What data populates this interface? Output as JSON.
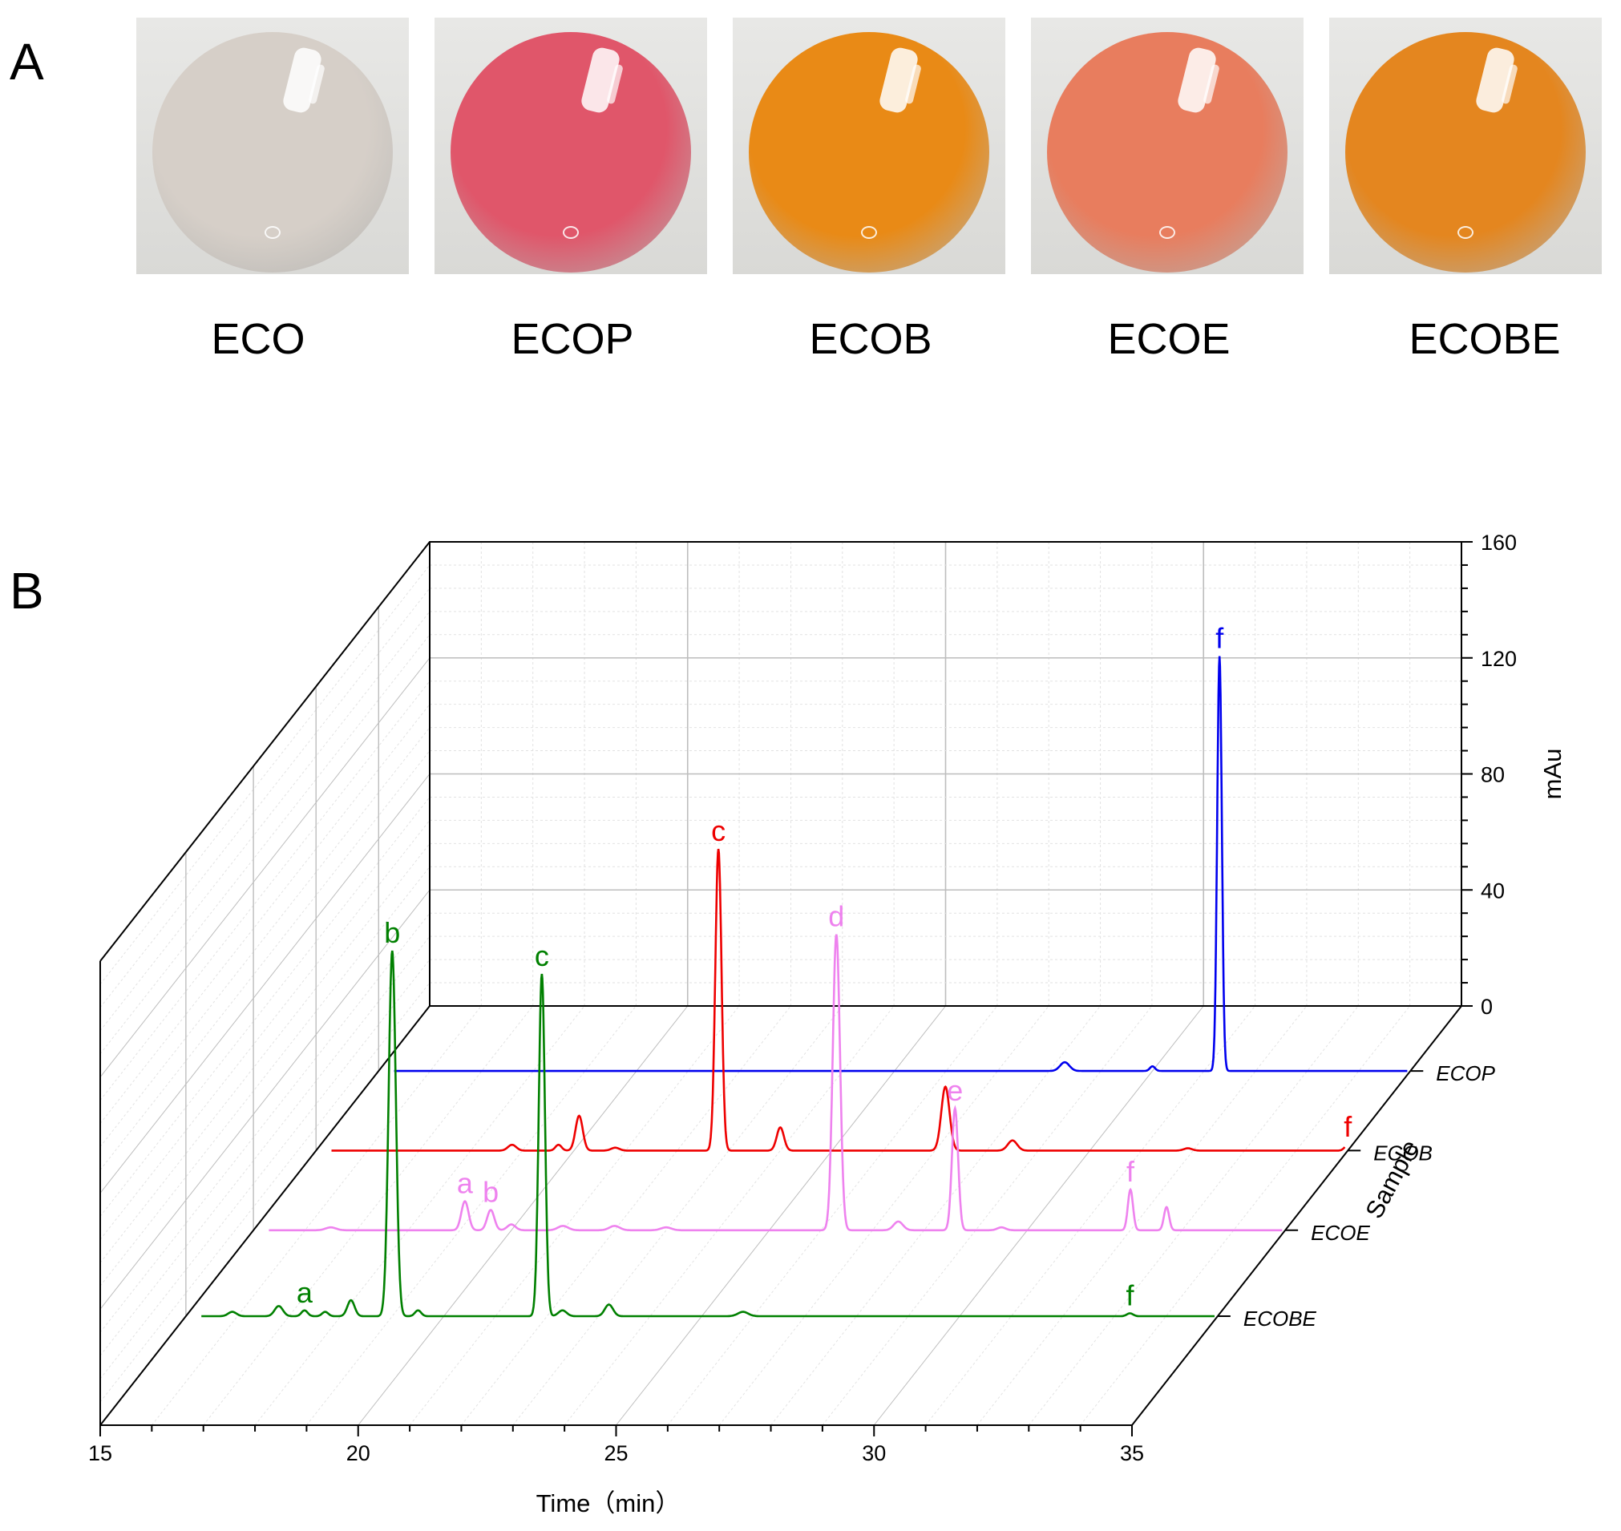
{
  "panel_a": {
    "letter": "A",
    "samples": [
      {
        "label": "ECO",
        "color": "#d6cfc8"
      },
      {
        "label": "ECOP",
        "color": "#e0566a"
      },
      {
        "label": "ECOB",
        "color": "#e98a16"
      },
      {
        "label": "ECOE",
        "color": "#e87d5e"
      },
      {
        "label": "ECOBE",
        "color": "#e4861f"
      }
    ]
  },
  "panel_b": {
    "letter": "B"
  },
  "chart_data": {
    "type": "line",
    "title": "",
    "xlabel": "Time（min）",
    "ylabel": "mAu",
    "zlabel": "Sample",
    "xlim": [
      15,
      35
    ],
    "ylim": [
      0,
      160
    ],
    "x_ticks": [
      15,
      20,
      25,
      30,
      35
    ],
    "y_ticks": [
      0,
      40,
      80,
      120,
      160
    ],
    "grid": true,
    "series": [
      {
        "name": "ECOP",
        "color": "#0000ee",
        "peaks": [
          {
            "time": 28.3,
            "height": 3.0,
            "width": 0.09
          },
          {
            "time": 30.0,
            "height": 1.6,
            "width": 0.05
          },
          {
            "time": 31.3,
            "height": 143,
            "width": 0.045
          }
        ],
        "labels": [
          {
            "text": "f",
            "time": 31.3,
            "value": 143
          }
        ]
      },
      {
        "name": "ECOB",
        "color": "#ee0000",
        "peaks": [
          {
            "time": 18.8,
            "height": 2.0,
            "width": 0.08
          },
          {
            "time": 19.7,
            "height": 2.0,
            "width": 0.06
          },
          {
            "time": 20.1,
            "height": 12.0,
            "width": 0.07
          },
          {
            "time": 20.8,
            "height": 1.0,
            "width": 0.08
          },
          {
            "time": 22.8,
            "height": 104,
            "width": 0.06
          },
          {
            "time": 24.0,
            "height": 8.0,
            "width": 0.07
          },
          {
            "time": 27.2,
            "height": 22.0,
            "width": 0.08
          },
          {
            "time": 28.5,
            "height": 3.5,
            "width": 0.09
          },
          {
            "time": 31.9,
            "height": 0.8,
            "width": 0.08
          },
          {
            "time": 35.0,
            "height": 2.0,
            "width": 0.06
          }
        ],
        "labels": [
          {
            "text": "c",
            "time": 22.8,
            "value": 104
          },
          {
            "text": "f",
            "time": 35.0,
            "value": 2
          }
        ]
      },
      {
        "name": "ECOE",
        "color": "#ee82ee",
        "peaks": [
          {
            "time": 16.5,
            "height": 1.0,
            "width": 0.1
          },
          {
            "time": 19.1,
            "height": 10.0,
            "width": 0.07
          },
          {
            "time": 19.6,
            "height": 7.0,
            "width": 0.07
          },
          {
            "time": 20.0,
            "height": 2.0,
            "width": 0.08
          },
          {
            "time": 21.0,
            "height": 1.5,
            "width": 0.1
          },
          {
            "time": 22.0,
            "height": 1.5,
            "width": 0.1
          },
          {
            "time": 23.0,
            "height": 1.0,
            "width": 0.1
          },
          {
            "time": 26.3,
            "height": 102,
            "width": 0.07
          },
          {
            "time": 27.5,
            "height": 3.0,
            "width": 0.09
          },
          {
            "time": 28.6,
            "height": 42.0,
            "width": 0.06
          },
          {
            "time": 29.5,
            "height": 1.0,
            "width": 0.08
          },
          {
            "time": 32.0,
            "height": 14.0,
            "width": 0.05
          },
          {
            "time": 32.7,
            "height": 8.0,
            "width": 0.05
          }
        ],
        "labels": [
          {
            "text": "a",
            "time": 19.1,
            "value": 10
          },
          {
            "text": "b",
            "time": 19.6,
            "value": 7
          },
          {
            "text": "d",
            "time": 26.3,
            "value": 102
          },
          {
            "text": "e",
            "time": 28.6,
            "value": 42
          },
          {
            "text": "f",
            "time": 32.0,
            "value": 14
          }
        ]
      },
      {
        "name": "ECOBE",
        "color": "#008000",
        "peaks": [
          {
            "time": 15.9,
            "height": 1.5,
            "width": 0.08
          },
          {
            "time": 16.8,
            "height": 3.5,
            "width": 0.08
          },
          {
            "time": 17.3,
            "height": 2.0,
            "width": 0.06
          },
          {
            "time": 17.7,
            "height": 1.5,
            "width": 0.06
          },
          {
            "time": 18.2,
            "height": 5.5,
            "width": 0.07
          },
          {
            "time": 19.0,
            "height": 126,
            "width": 0.07
          },
          {
            "time": 19.5,
            "height": 2.0,
            "width": 0.06
          },
          {
            "time": 21.9,
            "height": 118,
            "width": 0.06
          },
          {
            "time": 22.3,
            "height": 2.0,
            "width": 0.08
          },
          {
            "time": 23.2,
            "height": 4.0,
            "width": 0.08
          },
          {
            "time": 25.8,
            "height": 1.5,
            "width": 0.1
          },
          {
            "time": 33.3,
            "height": 1.0,
            "width": 0.06
          }
        ],
        "labels": [
          {
            "text": "a",
            "time": 17.3,
            "value": 2
          },
          {
            "text": "b",
            "time": 19.0,
            "value": 126
          },
          {
            "text": "c",
            "time": 21.9,
            "value": 118
          },
          {
            "text": "f",
            "time": 33.3,
            "value": 1
          }
        ]
      }
    ]
  }
}
